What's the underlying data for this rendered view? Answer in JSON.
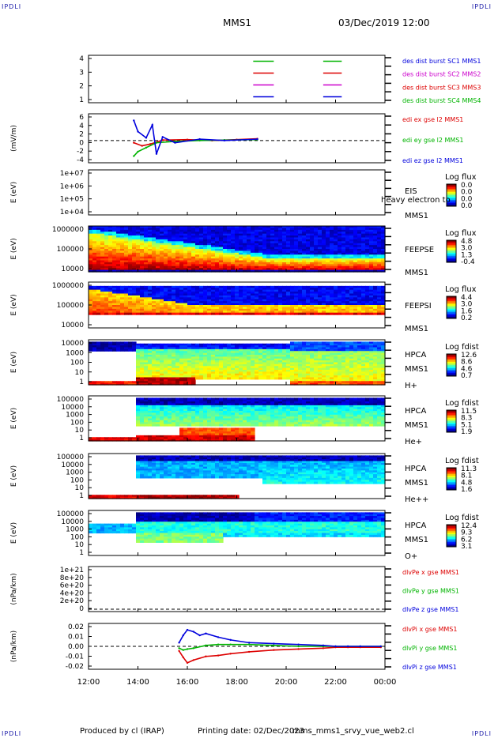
{
  "corner_label": "IPDLI",
  "header": {
    "spacecraft": "MMS1",
    "date_time": "03/Dec/2019 12:00"
  },
  "footer": {
    "produced_by": "Produced by cl (IRAP)",
    "printing_date": "Printing date: 02/Dec/2023",
    "script": "mms_mms1_srvy_vue_web2.cl"
  },
  "colors": {
    "red": "#dd0000",
    "green": "#00b400",
    "blue": "#0000dd",
    "magenta": "#cc00cc",
    "cyan": "#00cccc"
  },
  "time_axis": {
    "start": "12:00",
    "end": "00:00",
    "tick_labels": [
      "12:00",
      "14:00",
      "16:00",
      "18:00",
      "20:00",
      "22:00",
      "00:00"
    ]
  },
  "chart_data": [
    {
      "type": "line",
      "panel": "des_dist_burst",
      "y_tick_labels": [
        "4",
        "3",
        "2",
        "1"
      ],
      "ylim": [
        0.5,
        4.5
      ],
      "legend": [
        "des dist burst SC1 MMS1",
        "des dist burst SC2 MMS2",
        "des dist burst SC3 MMS3",
        "des dist burst SC4 MMS4"
      ],
      "legend_colors": [
        "#0000dd",
        "#cc00cc",
        "#dd0000",
        "#00b400"
      ],
      "intervals": [
        {
          "start": "18:40",
          "end": "19:30"
        },
        {
          "start": "21:30",
          "end": "22:15"
        }
      ]
    },
    {
      "type": "line",
      "panel": "edi_e_gse",
      "ylabel": "(mV/m)",
      "y_tick_labels": [
        "6",
        "4",
        "2",
        "0",
        "-2",
        "-4"
      ],
      "ylim": [
        -5,
        6
      ],
      "legend": [
        "edi ex gse l2 MMS1",
        "edi ey gse l2 MMS1",
        "edi ez gse l2 MMS1"
      ],
      "legend_colors": [
        "#dd0000",
        "#00b400",
        "#0000dd"
      ],
      "series": [
        {
          "name": "edi ex gse l2 MMS1",
          "x": [
            "13:50",
            "14:10",
            "14:30",
            "15:00",
            "16:00",
            "17:00",
            "18:00",
            "18:50"
          ],
          "y": [
            -0.5,
            -1.2,
            -0.8,
            0.1,
            0.2,
            0.0,
            0.2,
            0.4
          ]
        },
        {
          "name": "edi ey gse l2 MMS1",
          "x": [
            "13:50",
            "14:00",
            "14:20",
            "14:45",
            "15:30",
            "16:30",
            "17:30",
            "18:50"
          ],
          "y": [
            -3.5,
            -2.5,
            -1.6,
            -0.5,
            -0.2,
            0.0,
            0.1,
            0.2
          ]
        },
        {
          "name": "edi ez gse l2 MMS1",
          "x": [
            "13:50",
            "14:00",
            "14:20",
            "14:35",
            "14:45",
            "15:00",
            "15:30",
            "16:30",
            "17:30",
            "18:50"
          ],
          "y": [
            4.5,
            2.0,
            0.6,
            3.5,
            -3.0,
            0.8,
            -0.5,
            0.3,
            0.0,
            0.3
          ]
        }
      ]
    },
    {
      "type": "heatmap",
      "panel": "EIS",
      "ylabel": "E (eV)",
      "y_tick_labels": [
        "1e+07",
        "1e+06",
        "1e+05",
        "1e+04"
      ],
      "labels": [
        "EIS",
        "heavy electron to",
        "MMS1"
      ],
      "colorbar": {
        "title": "Log flux",
        "ticks": [
          "0.0",
          "0.0",
          "0.0",
          "0.0"
        ]
      }
    },
    {
      "type": "heatmap",
      "panel": "FEEPSE",
      "ylabel": "E (eV)",
      "y_tick_labels": [
        "1000000",
        "100000",
        "10000"
      ],
      "labels": [
        "FEEPSE",
        "MMS1"
      ],
      "colorbar": {
        "title": "Log flux",
        "ticks": [
          "4.8",
          "3.0",
          "1.3",
          "-0.4"
        ]
      }
    },
    {
      "type": "heatmap",
      "panel": "FEEPSI",
      "ylabel": "E (eV)",
      "y_tick_labels": [
        "1000000",
        "100000",
        "10000"
      ],
      "labels": [
        "FEEPSI",
        "MMS1"
      ],
      "colorbar": {
        "title": "Log flux",
        "ticks": [
          "4.4",
          "3.0",
          "1.6",
          "0.2"
        ]
      }
    },
    {
      "type": "heatmap",
      "panel": "HPCA_H",
      "ylabel": "E (eV)",
      "y_tick_labels": [
        "10000",
        "1000",
        "100",
        "10",
        "1"
      ],
      "labels": [
        "HPCA",
        "MMS1",
        "H+"
      ],
      "colorbar": {
        "title": "Log fdist",
        "ticks": [
          "12.6",
          "8.6",
          "4.6",
          "0.7"
        ]
      }
    },
    {
      "type": "heatmap",
      "panel": "HPCA_He",
      "ylabel": "E (eV)",
      "y_tick_labels": [
        "100000",
        "10000",
        "1000",
        "100",
        "10",
        "1"
      ],
      "labels": [
        "HPCA",
        "MMS1",
        "He+"
      ],
      "colorbar": {
        "title": "Log fdist",
        "ticks": [
          "11.5",
          "8.3",
          "5.1",
          "1.9"
        ]
      }
    },
    {
      "type": "heatmap",
      "panel": "HPCA_He2",
      "ylabel": "E (eV)",
      "y_tick_labels": [
        "100000",
        "10000",
        "1000",
        "100",
        "10",
        "1"
      ],
      "labels": [
        "HPCA",
        "MMS1",
        "He++"
      ],
      "colorbar": {
        "title": "Log fdist",
        "ticks": [
          "11.3",
          "8.1",
          "4.8",
          "1.6"
        ]
      }
    },
    {
      "type": "heatmap",
      "panel": "HPCA_O",
      "ylabel": "E (eV)",
      "y_tick_labels": [
        "100000",
        "10000",
        "1000",
        "100",
        "10",
        "1"
      ],
      "labels": [
        "HPCA",
        "MMS1",
        "O+"
      ],
      "colorbar": {
        "title": "Log fdist",
        "ticks": [
          "12.4",
          "9.3",
          "6.2",
          "3.1"
        ]
      }
    },
    {
      "type": "line",
      "panel": "dlvPe",
      "ylabel": "(nPa/km)",
      "y_tick_labels": [
        "1e+21",
        "8e+20",
        "6e+20",
        "4e+20",
        "2e+20",
        "0"
      ],
      "legend": [
        "dlvPe x gse MMS1",
        "dlvPe y gse MMS1",
        "dlvPe z gse MMS1"
      ],
      "legend_colors": [
        "#dd0000",
        "#00b400",
        "#0000dd"
      ],
      "series": []
    },
    {
      "type": "line",
      "panel": "dlvPi",
      "ylabel": "(nPa/km)",
      "y_tick_labels": [
        "0.02",
        "0.01",
        "0.00",
        "-0.01",
        "-0.02"
      ],
      "ylim": [
        -0.025,
        0.025
      ],
      "legend": [
        "dlvPi x gse MMS1",
        "dlvPi y gse MMS1",
        "dlvPi z gse MMS1"
      ],
      "legend_colors": [
        "#dd0000",
        "#00b400",
        "#0000dd"
      ],
      "series": [
        {
          "name": "dlvPi x gse MMS1",
          "x": [
            "15:40",
            "15:50",
            "16:00",
            "16:15",
            "16:45",
            "17:15",
            "17:45",
            "18:30",
            "19:30",
            "20:30",
            "21:30",
            "22:00",
            "22:30",
            "23:00",
            "23:50"
          ],
          "y": [
            -0.005,
            -0.012,
            -0.018,
            -0.015,
            -0.011,
            -0.01,
            -0.008,
            -0.006,
            -0.004,
            -0.003,
            -0.002,
            -0.001,
            -0.001,
            -0.001,
            -0.001
          ]
        },
        {
          "name": "dlvPi y gse MMS1",
          "x": [
            "15:40",
            "15:50",
            "16:00",
            "16:15",
            "16:45",
            "17:15",
            "17:45",
            "18:30",
            "19:30",
            "20:30",
            "21:30",
            "22:00",
            "22:30",
            "23:00",
            "23:50"
          ],
          "y": [
            -0.002,
            -0.004,
            -0.003,
            -0.002,
            0.001,
            0.002,
            0.002,
            0.002,
            0.001,
            0.0,
            0.0,
            0.0,
            0.0,
            0.0,
            0.0
          ]
        },
        {
          "name": "dlvPi z gse MMS1",
          "x": [
            "15:40",
            "15:50",
            "16:00",
            "16:15",
            "16:30",
            "16:45",
            "17:15",
            "17:45",
            "18:30",
            "19:30",
            "20:30",
            "21:30",
            "22:00",
            "22:30",
            "23:00",
            "23:50"
          ],
          "y": [
            0.004,
            0.012,
            0.018,
            0.016,
            0.012,
            0.014,
            0.01,
            0.007,
            0.004,
            0.003,
            0.002,
            0.001,
            0.0,
            0.0,
            0.0,
            0.0
          ]
        }
      ]
    }
  ]
}
